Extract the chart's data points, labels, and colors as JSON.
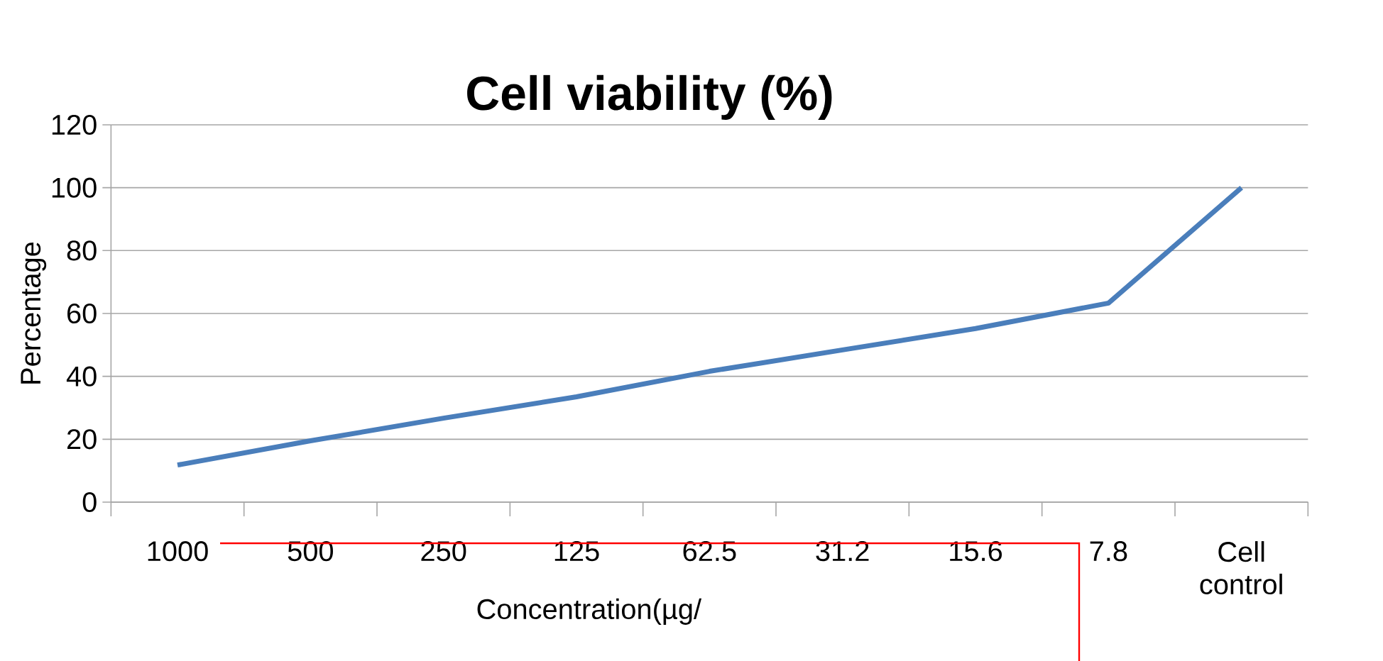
{
  "chart_data": {
    "type": "line",
    "title": "Cell viability (%)",
    "xlabel": "Concentration(µg/",
    "ylabel": "Percentage",
    "categories": [
      "1000",
      "500",
      "250",
      "125",
      "62.5",
      "31.2",
      "15.6",
      "7.8",
      "Cell control"
    ],
    "series": [
      {
        "color": "#4a7ebb",
        "values": [
          11.8,
          19.5,
          26.7,
          33.5,
          41.6,
          48.4,
          55.2,
          63.3,
          100
        ]
      }
    ],
    "ylim": [
      0,
      120
    ],
    "yticks": [
      0,
      20,
      40,
      60,
      80,
      100,
      120
    ],
    "grid": "y",
    "marker": "none"
  }
}
